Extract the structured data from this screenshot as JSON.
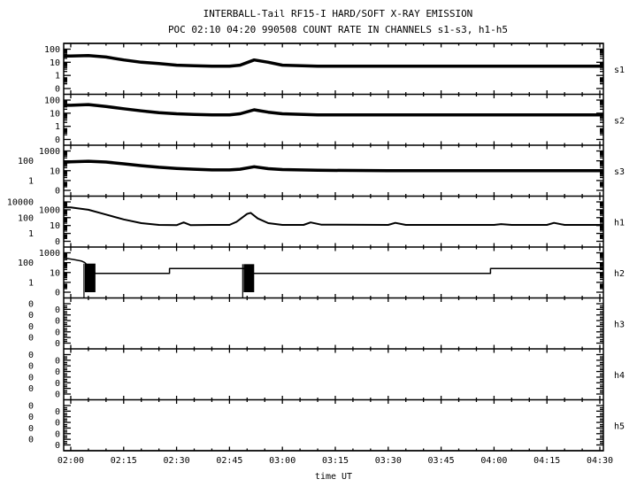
{
  "chart_data": {
    "type": "line",
    "title": "INTERBALL-Tail RF15-I HARD/SOFT X-RAY EMISSION",
    "subtitle": "POC 02:10 04:20 990508  COUNT RATE IN CHANNELS s1-s3, h1-h5",
    "xlabel": "time UT",
    "x_ticks": [
      "02:00",
      "02:15",
      "02:30",
      "02:45",
      "03:00",
      "03:15",
      "03:30",
      "03:45",
      "04:00",
      "04:15",
      "04:30"
    ],
    "xlim": [
      "01:58",
      "04:31"
    ],
    "y_scale": "log",
    "grid": false,
    "color": "#000000",
    "panels": [
      {
        "name": "s1",
        "yticks": [
          "0",
          "1",
          "10",
          "100"
        ],
        "weight": "noisy",
        "points": [
          [
            "01:58",
            30
          ],
          [
            "02:00",
            30
          ],
          [
            "02:05",
            32
          ],
          [
            "02:10",
            25
          ],
          [
            "02:15",
            15
          ],
          [
            "02:20",
            10
          ],
          [
            "02:25",
            8
          ],
          [
            "02:30",
            6
          ],
          [
            "02:35",
            5.5
          ],
          [
            "02:40",
            5
          ],
          [
            "02:45",
            5
          ],
          [
            "02:48",
            6
          ],
          [
            "02:52",
            15
          ],
          [
            "02:56",
            10
          ],
          [
            "03:00",
            6
          ],
          [
            "03:10",
            5
          ],
          [
            "03:30",
            5
          ],
          [
            "04:00",
            5
          ],
          [
            "04:31",
            5
          ]
        ]
      },
      {
        "name": "s2",
        "yticks": [
          "0",
          "1",
          "10",
          "100"
        ],
        "weight": "noisy",
        "points": [
          [
            "01:58",
            40
          ],
          [
            "02:00",
            40
          ],
          [
            "02:05",
            45
          ],
          [
            "02:10",
            32
          ],
          [
            "02:15",
            22
          ],
          [
            "02:20",
            15
          ],
          [
            "02:25",
            11
          ],
          [
            "02:30",
            9
          ],
          [
            "02:35",
            8
          ],
          [
            "02:40",
            7.5
          ],
          [
            "02:45",
            7.5
          ],
          [
            "02:48",
            9
          ],
          [
            "02:52",
            18
          ],
          [
            "02:56",
            12
          ],
          [
            "03:00",
            9
          ],
          [
            "03:10",
            7.5
          ],
          [
            "03:30",
            7.5
          ],
          [
            "04:00",
            7.5
          ],
          [
            "04:31",
            7.5
          ]
        ]
      },
      {
        "name": "s3",
        "yticks": [
          "0",
          "1",
          "10",
          "100",
          "1000"
        ],
        "weight": "noisy",
        "points": [
          [
            "01:58",
            70
          ],
          [
            "02:00",
            80
          ],
          [
            "02:05",
            90
          ],
          [
            "02:10",
            75
          ],
          [
            "02:15",
            50
          ],
          [
            "02:20",
            32
          ],
          [
            "02:25",
            22
          ],
          [
            "02:30",
            17
          ],
          [
            "02:35",
            14
          ],
          [
            "02:40",
            12
          ],
          [
            "02:45",
            12
          ],
          [
            "02:48",
            14
          ],
          [
            "02:52",
            25
          ],
          [
            "02:56",
            16
          ],
          [
            "03:00",
            13
          ],
          [
            "03:10",
            11
          ],
          [
            "03:30",
            10
          ],
          [
            "04:00",
            10
          ],
          [
            "04:31",
            10
          ]
        ]
      },
      {
        "name": "h1",
        "yticks": [
          "0",
          "1",
          "10",
          "100",
          "1000",
          "10000"
        ],
        "weight": "medium",
        "points": [
          [
            "01:58",
            2000
          ],
          [
            "02:00",
            2000
          ],
          [
            "02:05",
            1000
          ],
          [
            "02:10",
            250
          ],
          [
            "02:15",
            60
          ],
          [
            "02:20",
            20
          ],
          [
            "02:25",
            12
          ],
          [
            "02:30",
            11
          ],
          [
            "02:32",
            25
          ],
          [
            "02:34",
            11
          ],
          [
            "02:40",
            12
          ],
          [
            "02:45",
            12
          ],
          [
            "02:47",
            30
          ],
          [
            "02:50",
            300
          ],
          [
            "02:51",
            400
          ],
          [
            "02:53",
            80
          ],
          [
            "02:56",
            20
          ],
          [
            "03:00",
            12
          ],
          [
            "03:06",
            12
          ],
          [
            "03:08",
            25
          ],
          [
            "03:11",
            13
          ],
          [
            "03:30",
            12
          ],
          [
            "03:32",
            22
          ],
          [
            "03:35",
            12
          ],
          [
            "03:50",
            12
          ],
          [
            "04:00",
            12
          ],
          [
            "04:02",
            15
          ],
          [
            "04:05",
            12
          ],
          [
            "04:15",
            12
          ],
          [
            "04:17",
            22
          ],
          [
            "04:20",
            12
          ],
          [
            "04:31",
            12
          ]
        ]
      },
      {
        "name": "h2",
        "yticks": [
          "0",
          "1",
          "10",
          "100",
          "1000"
        ],
        "weight": "step",
        "points": [
          [
            "01:58",
            300
          ],
          [
            "02:01",
            200
          ],
          [
            "02:03",
            150
          ],
          [
            "02:04",
            100
          ],
          [
            "02:07",
            8
          ],
          [
            "02:28",
            8
          ],
          [
            "02:28",
            25
          ],
          [
            "02:49",
            25
          ],
          [
            "02:52",
            8
          ],
          [
            "03:59",
            8
          ],
          [
            "03:59",
            25
          ],
          [
            "04:31",
            25
          ]
        ],
        "bursts": [
          {
            "from": "02:04",
            "to": "02:07",
            "high": 80,
            "low": 0
          },
          {
            "from": "02:49",
            "to": "02:52",
            "high": 70,
            "low": 0
          }
        ]
      },
      {
        "name": "h3",
        "yticks": [
          "0",
          "0",
          "0",
          "0",
          "0",
          "0",
          "0",
          "0"
        ],
        "points": []
      },
      {
        "name": "h4",
        "yticks": [
          "0",
          "0",
          "0",
          "0",
          "0",
          "0",
          "0",
          "0"
        ],
        "points": []
      },
      {
        "name": "h5",
        "yticks": [
          "0",
          "0",
          "0",
          "0",
          "0",
          "0",
          "0",
          "0"
        ],
        "points": []
      }
    ]
  }
}
